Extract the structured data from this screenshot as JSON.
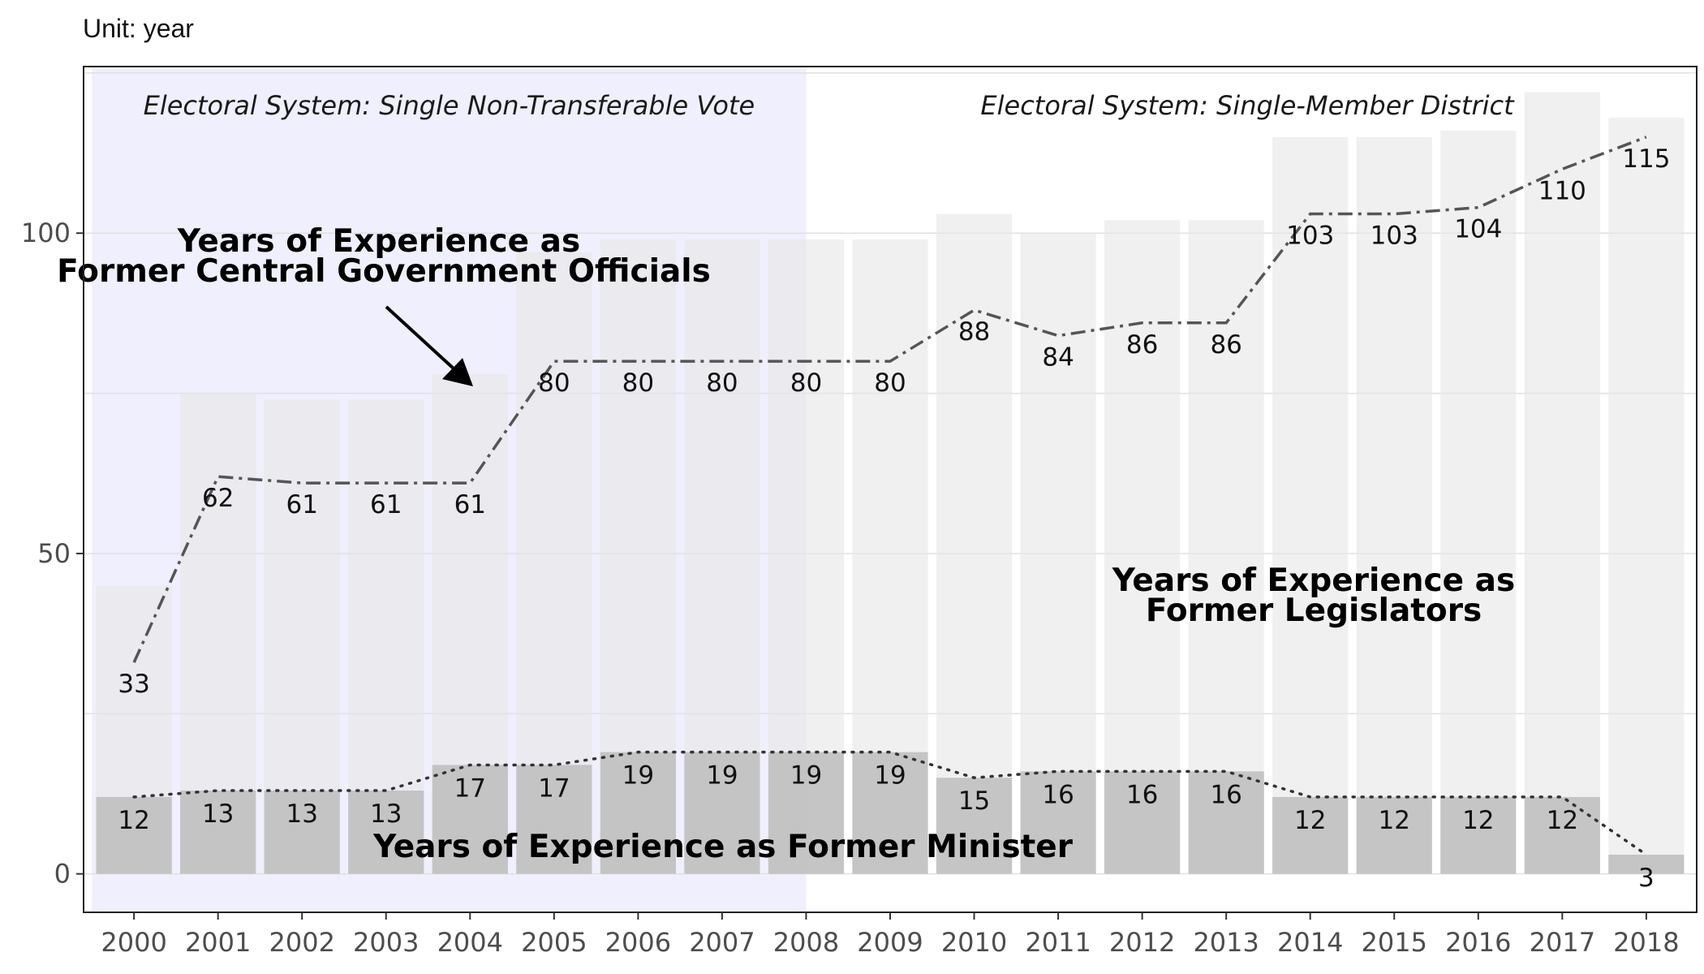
{
  "unit_label": "Unit: year",
  "colors": {
    "sntv_shade": "#efeffd",
    "legislator_bar": "#e6e6e6",
    "minister_bar": "#bdbdbd",
    "official_line": "#555555",
    "minister_line": "#333333",
    "grid": "#e0e0e0",
    "panel_border": "#222222"
  },
  "chart_data": {
    "type": "bar",
    "x": [
      2000,
      2001,
      2002,
      2003,
      2004,
      2005,
      2006,
      2007,
      2008,
      2009,
      2010,
      2011,
      2012,
      2013,
      2014,
      2015,
      2016,
      2017,
      2018
    ],
    "x_tick_labels": [
      "2000",
      "2001",
      "2002",
      "2003",
      "2004",
      "2005",
      "2006",
      "2007",
      "2008",
      "2009",
      "2010",
      "2011",
      "2012",
      "2013",
      "2014",
      "2015",
      "2016",
      "2017",
      "2018"
    ],
    "ylim": [
      -6,
      126
    ],
    "y_ticks": [
      0,
      50,
      100
    ],
    "y_tick_labels": [
      "0",
      "50",
      "100"
    ],
    "grid": true,
    "series": [
      {
        "name": "Years of Experience as Former Legislators",
        "kind": "bar",
        "values": [
          45,
          75,
          74,
          74,
          78,
          97,
          99,
          99,
          99,
          99,
          103,
          100,
          102,
          102,
          115,
          115,
          116,
          122,
          118
        ]
      },
      {
        "name": "Years of Experience as Former Minister",
        "kind": "bar+dotted-line",
        "values": [
          12,
          13,
          13,
          13,
          17,
          17,
          19,
          19,
          19,
          19,
          15,
          16,
          16,
          16,
          12,
          12,
          12,
          12,
          3
        ],
        "labels": [
          "12",
          "13",
          "13",
          "13",
          "17",
          "17",
          "19",
          "19",
          "19",
          "19",
          "15",
          "16",
          "16",
          "16",
          "12",
          "12",
          "12",
          "12",
          "3"
        ]
      },
      {
        "name": "Years of Experience as Former Central Government Officials",
        "kind": "dash-dot-line",
        "values": [
          33,
          62,
          61,
          61,
          61,
          80,
          80,
          80,
          80,
          80,
          88,
          84,
          86,
          86,
          103,
          103,
          104,
          110,
          115
        ],
        "labels": [
          "33",
          "62",
          "61",
          "61",
          "61",
          "80",
          "80",
          "80",
          "80",
          "80",
          "88",
          "84",
          "86",
          "86",
          "103",
          "103",
          "104",
          "110",
          "115"
        ]
      }
    ],
    "regions": [
      {
        "label": "Electoral System: Single Non-Transferable Vote",
        "x_start": 1999.5,
        "x_end": 2008,
        "shaded": true
      },
      {
        "label": "Electoral System: Single-Member District",
        "x_start": 2008,
        "x_end": 2018.5,
        "shaded": false
      }
    ],
    "annotations": {
      "officials_line1": "Years of Experience as",
      "officials_line2": "Former Central Government Officials",
      "legislators_line1": "Years of Experience as",
      "legislators_line2": "Former Legislators",
      "minister": "Years of Experience as Former Minister"
    }
  }
}
